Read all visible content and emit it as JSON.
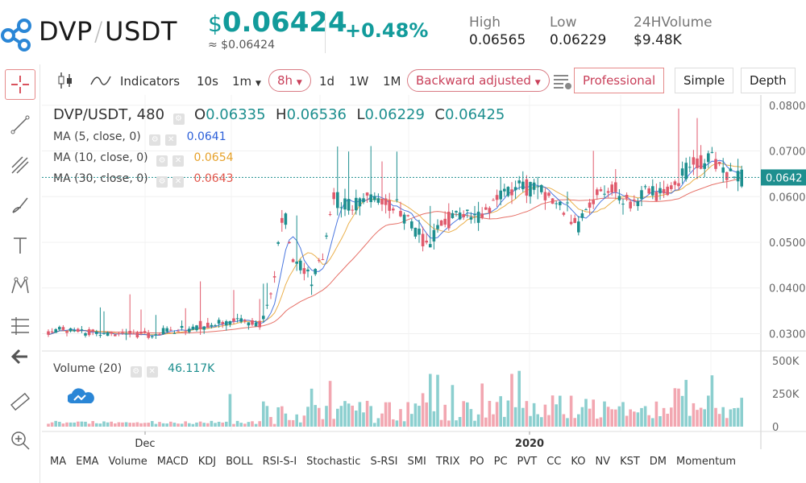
{
  "header": {
    "pair": {
      "base": "DVP",
      "sep": "/",
      "quote": "USDT"
    },
    "price_symbol": "$",
    "price": "0.06424",
    "price_approx": "≈ $0.06424",
    "change": "+0.48%",
    "high_label": "High",
    "high": "0.06565",
    "low_label": "Low",
    "low": "0.06229",
    "vol_label": "24HVolume",
    "vol": "$9.48K"
  },
  "toolbar": {
    "indicators": "Indicators",
    "intervals": [
      "10s",
      "1m",
      "8h",
      "1d",
      "1W",
      "1M"
    ],
    "selected_interval": "8h",
    "adjust": "Backward adjusted",
    "views": [
      "Professional",
      "Simple",
      "Depth"
    ],
    "active_view": "Professional"
  },
  "legend": {
    "symbol": "DVP/USDT, 480",
    "o_label": "O",
    "o": "0.06335",
    "h_label": "H",
    "h": "0.06536",
    "l_label": "L",
    "l": "0.06229",
    "c_label": "C",
    "c": "0.06425",
    "ma": [
      {
        "label": "MA (5, close, 0)",
        "value": "0.0641",
        "color": "#2b5fd9"
      },
      {
        "label": "MA (10, close, 0)",
        "value": "0.0654",
        "color": "#e6a12a"
      },
      {
        "label": "MA (30, close, 0)",
        "value": "0.0643",
        "color": "#e2574c"
      }
    ],
    "volume_label": "Volume (20)",
    "volume_value": "46.117K"
  },
  "chart_data": {
    "type": "candlestick",
    "y_ticks": [
      "0.0800",
      "0.0700",
      "0.0600",
      "0.0500",
      "0.0400",
      "0.0300"
    ],
    "y_range": [
      0.0262,
      0.0812
    ],
    "current_price_label": "0.0642",
    "current_price": 0.0642,
    "volume_ticks": [
      "500K",
      "250K",
      "0"
    ],
    "volume_range": [
      0,
      500000
    ],
    "x_labels": [
      "Dec",
      "2020"
    ],
    "colors": {
      "up": "#1e8f8f",
      "down": "#e05a6c",
      "vol_up": "#8ccfcf",
      "vol_down": "#f2a7b1"
    }
  },
  "bottom_indicators": [
    "MA",
    "EMA",
    "Volume",
    "MACD",
    "KDJ",
    "BOLL",
    "RSI-S-I",
    "Stochastic",
    "S-RSI",
    "SMI",
    "TRIX",
    "PO",
    "PC",
    "PVT",
    "CC",
    "KO",
    "NV",
    "KST",
    "DM",
    "Momentum"
  ]
}
